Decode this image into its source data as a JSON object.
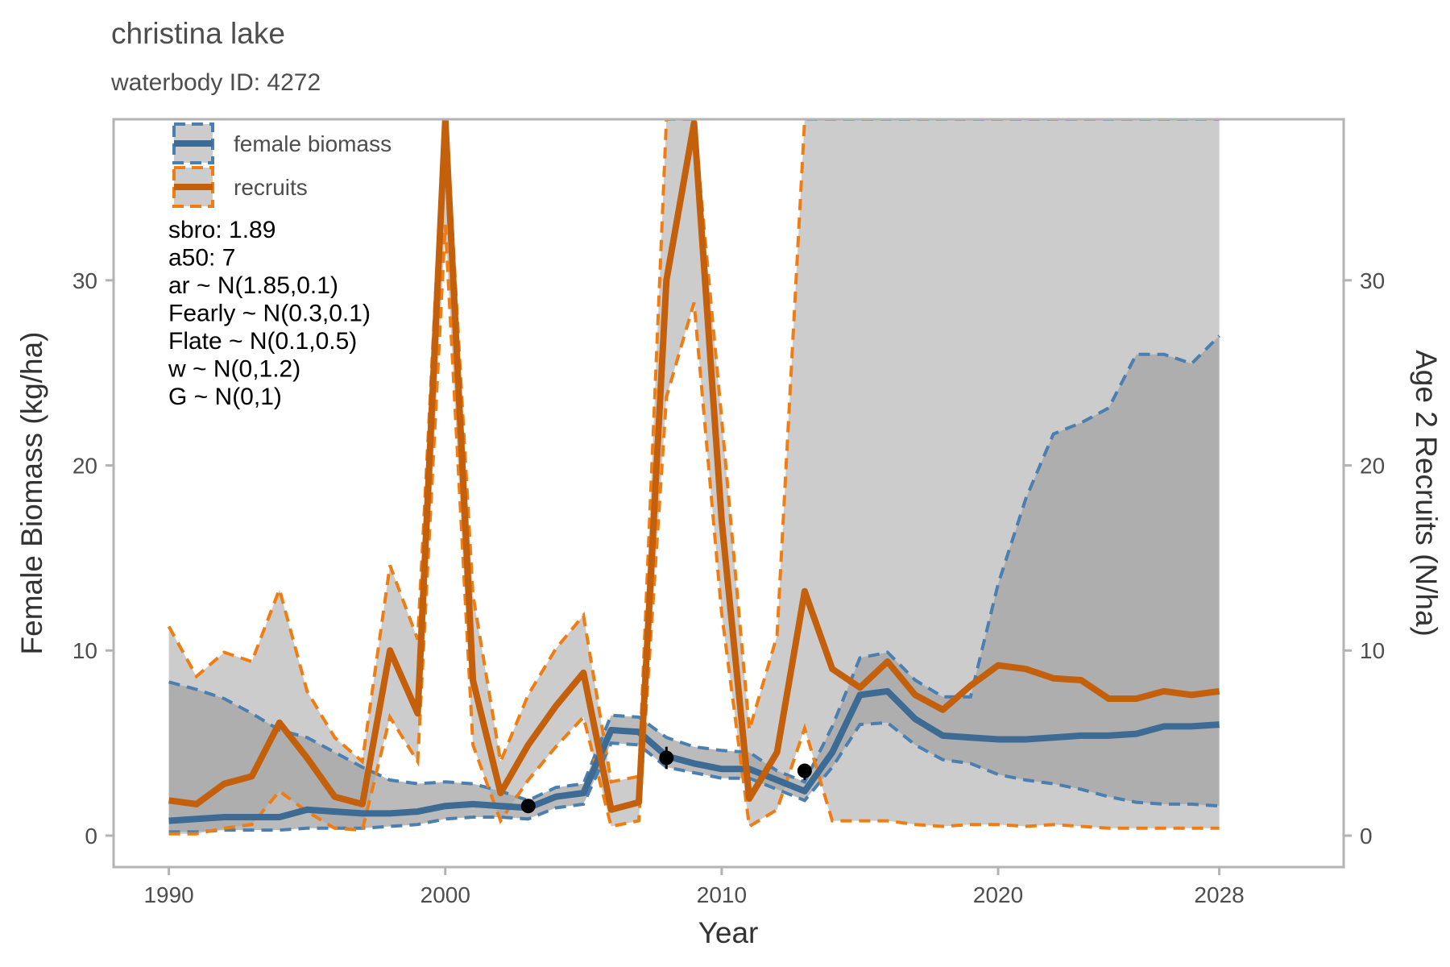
{
  "chart_data": {
    "type": "line",
    "title": "christina lake",
    "subtitle": "waterbody ID: 4272",
    "xlabel": "Year",
    "ylabel_left": "Female Biomass (kg/ha)",
    "ylabel_right": "Age 2 Recruits (N/ha)",
    "xlim": [
      1988,
      2032.5
    ],
    "ylim": [
      -1.7,
      38.7
    ],
    "x_ticks": [
      1990,
      2000,
      2010,
      2020,
      2028
    ],
    "y_ticks": [
      0,
      10,
      20,
      30
    ],
    "grid": false,
    "legend_position": "top-left",
    "colors": {
      "biomass": "#3d6b93",
      "biomass_dash": "#4a7fb0",
      "recruits": "#c4600c",
      "recruits_dash": "#ef7d12",
      "band_light": "#cccccc",
      "band_dark": "#a4a4a4",
      "point": "#000000",
      "frame": "#b3b3b3"
    },
    "legend": [
      {
        "key": "biomass",
        "label": "female biomass"
      },
      {
        "key": "recruits",
        "label": "recruits"
      }
    ],
    "annotations": [
      "sbro: 1.89",
      "a50: 7",
      "ar ~ N(1.85,0.1)",
      "Fearly ~ N(0.3,0.1)",
      "Flate ~ N(0.1,0.5)",
      "w ~ N(0,1.2)",
      "G ~ N(0,1)"
    ],
    "x": [
      1990,
      1991,
      1992,
      1993,
      1994,
      1995,
      1996,
      1997,
      1998,
      1999,
      2000,
      2001,
      2002,
      2003,
      2004,
      2005,
      2006,
      2007,
      2008,
      2009,
      2010,
      2011,
      2012,
      2013,
      2014,
      2015,
      2016,
      2017,
      2018,
      2019,
      2020,
      2021,
      2022,
      2023,
      2024,
      2025,
      2026,
      2027,
      2028
    ],
    "series": [
      {
        "name": "female biomass",
        "values": [
          0.8,
          0.9,
          1.0,
          1.0,
          1.0,
          1.4,
          1.3,
          1.2,
          1.2,
          1.3,
          1.6,
          1.7,
          1.6,
          1.5,
          2.1,
          2.3,
          5.7,
          5.6,
          4.3,
          3.9,
          3.6,
          3.6,
          3.0,
          2.4,
          4.5,
          7.6,
          7.8,
          6.3,
          5.4,
          5.3,
          5.2,
          5.2,
          5.3,
          5.4,
          5.4,
          5.5,
          5.9,
          5.9,
          6.0
        ],
        "lower": [
          0.2,
          0.2,
          0.3,
          0.3,
          0.3,
          0.4,
          0.4,
          0.4,
          0.5,
          0.6,
          0.9,
          1.0,
          1.0,
          0.9,
          1.5,
          1.7,
          5.0,
          4.9,
          3.7,
          3.4,
          3.1,
          3.1,
          2.5,
          1.9,
          3.7,
          6.0,
          6.1,
          4.9,
          4.1,
          3.9,
          3.3,
          3.0,
          2.8,
          2.5,
          2.1,
          1.8,
          1.7,
          1.7,
          1.6
        ],
        "upper": [
          8.3,
          7.9,
          7.4,
          6.6,
          5.7,
          5.3,
          4.5,
          3.7,
          3.0,
          2.8,
          2.9,
          2.8,
          2.4,
          1.9,
          2.6,
          2.8,
          6.5,
          6.4,
          5.3,
          4.8,
          4.6,
          4.5,
          3.5,
          2.9,
          5.9,
          9.6,
          9.9,
          8.4,
          7.5,
          7.5,
          13.6,
          18.2,
          21.7,
          22.3,
          23.1,
          26.0,
          26.0,
          25.5,
          27.0
        ]
      },
      {
        "name": "recruits",
        "values": [
          1.9,
          1.7,
          2.8,
          3.2,
          6.1,
          4.2,
          2.1,
          1.7,
          10.0,
          6.6,
          38.7,
          8.4,
          2.3,
          4.9,
          7.0,
          8.8,
          1.4,
          1.8,
          30.0,
          38.5,
          17.0,
          2.0,
          4.5,
          13.2,
          9.0,
          8.0,
          9.4,
          7.6,
          6.8,
          8.1,
          9.2,
          9.0,
          8.5,
          8.4,
          7.4,
          7.4,
          7.8,
          7.6,
          7.8
        ],
        "lower": [
          0.1,
          0.1,
          0.4,
          0.6,
          2.4,
          1.3,
          0.4,
          0.3,
          6.4,
          4.0,
          33.0,
          4.9,
          0.8,
          3.0,
          4.8,
          6.4,
          0.5,
          0.8,
          23.7,
          28.8,
          12.0,
          0.5,
          1.4,
          5.8,
          0.8,
          0.8,
          0.8,
          0.6,
          0.5,
          0.6,
          0.6,
          0.5,
          0.6,
          0.5,
          0.4,
          0.4,
          0.4,
          0.4,
          0.4
        ],
        "upper": [
          11.3,
          8.6,
          9.9,
          9.4,
          13.3,
          7.8,
          5.3,
          4.0,
          14.6,
          10.6,
          39.5,
          13.0,
          4.0,
          7.6,
          10.1,
          11.9,
          2.9,
          3.2,
          38.7,
          38.7,
          22.5,
          5.7,
          10.8,
          38.7,
          38.7,
          38.7,
          38.7,
          38.7,
          38.7,
          38.7,
          38.7,
          38.7,
          38.7,
          38.7,
          38.7,
          38.7,
          38.7,
          38.7,
          38.7
        ]
      }
    ],
    "observations": [
      {
        "x": 2003,
        "y": 1.6,
        "ylo": 1.4,
        "yhi": 1.8
      },
      {
        "x": 2008,
        "y": 4.2,
        "ylo": 3.6,
        "yhi": 4.8
      },
      {
        "x": 2013,
        "y": 3.5,
        "ylo": 3.0,
        "yhi": 3.8
      }
    ]
  }
}
